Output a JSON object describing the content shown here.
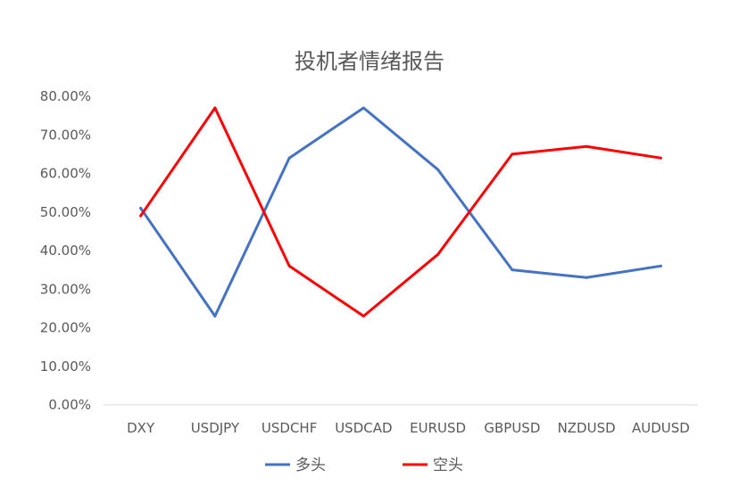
{
  "chart_data": {
    "type": "line",
    "title": "投机者情绪报告",
    "xlabel": "",
    "ylabel": "",
    "categories": [
      "DXY",
      "USDJPY",
      "USDCHF",
      "USDCAD",
      "EURUSD",
      "GBPUSD",
      "NZDUSD",
      "AUDUSD"
    ],
    "ylim": [
      0,
      80
    ],
    "yticks": [
      "0.00%",
      "10.00%",
      "20.00%",
      "30.00%",
      "40.00%",
      "50.00%",
      "60.00%",
      "70.00%",
      "80.00%"
    ],
    "grid": "horizontal",
    "legend": "bottom",
    "series": [
      {
        "name": "多头",
        "color": "#4472C4",
        "values": [
          51,
          23,
          64,
          77,
          61,
          35,
          33,
          36
        ]
      },
      {
        "name": "空头",
        "color": "#FF0000",
        "values": [
          49,
          77,
          36,
          23,
          39,
          65,
          67,
          64
        ]
      }
    ]
  }
}
